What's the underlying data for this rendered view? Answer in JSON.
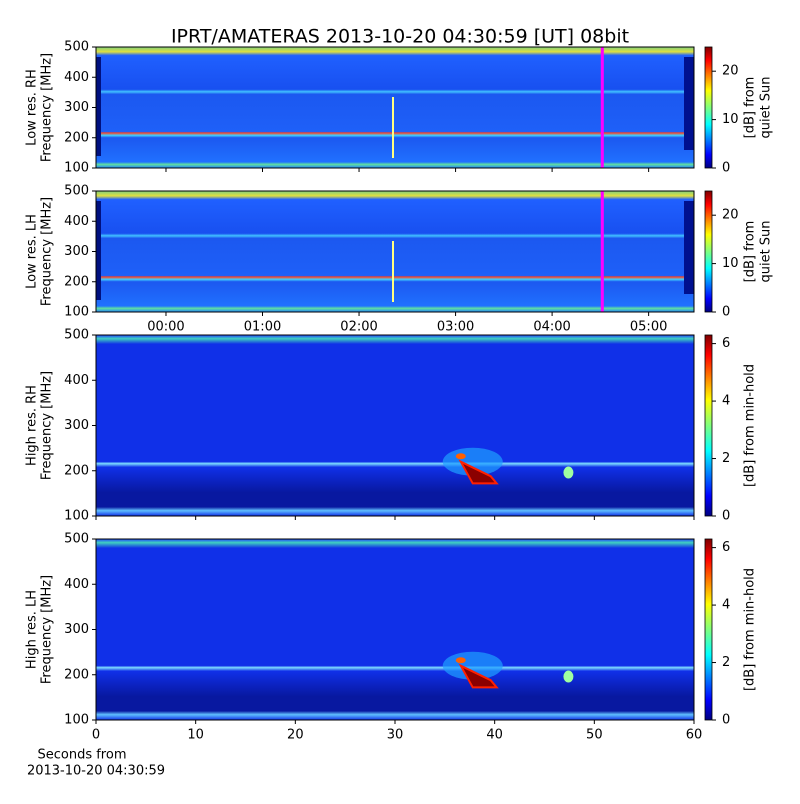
{
  "figure_title": "IPRT/AMATERAS 2013-10-20 04:30:59 [UT]   08bit",
  "chart_data": [
    {
      "type": "spectrogram",
      "ylabel": [
        "Low res. RH",
        "Frequency [MHz]"
      ],
      "ylim": [
        100,
        500
      ],
      "yticks": [
        100,
        200,
        300,
        400,
        500
      ],
      "xlim": [
        -0.725,
        5.47
      ],
      "xticks": [
        0,
        1,
        2,
        3,
        4,
        5
      ],
      "xtick_labels": false,
      "marker_x": 4.52,
      "marker_color": "#ff00ff",
      "colormap": "jet",
      "colorbar": {
        "label": [
          "[dB] from",
          "quiet Sun"
        ],
        "lim": [
          0,
          25
        ],
        "ticks": [
          0,
          10,
          20
        ]
      }
    },
    {
      "type": "spectrogram",
      "ylabel": [
        "Low res. LH",
        "Frequency [MHz]"
      ],
      "ylim": [
        100,
        500
      ],
      "yticks": [
        100,
        200,
        300,
        400,
        500
      ],
      "xlim": [
        -0.725,
        5.47
      ],
      "xticks": [
        {
          "value": 0,
          "label": "00:00"
        },
        {
          "value": 1,
          "label": "01:00"
        },
        {
          "value": 2,
          "label": "02:00"
        },
        {
          "value": 3,
          "label": "03:00"
        },
        {
          "value": 4,
          "label": "04:00"
        },
        {
          "value": 5,
          "label": "05:00"
        }
      ],
      "xtick_labels": true,
      "marker_x": 4.52,
      "marker_color": "#ff00ff",
      "colormap": "jet",
      "colorbar": {
        "label": [
          "[dB] from",
          "quiet Sun"
        ],
        "lim": [
          0,
          25
        ],
        "ticks": [
          0,
          10,
          20
        ]
      }
    },
    {
      "type": "spectrogram",
      "ylabel": [
        "High res. RH",
        "Frequency [MHz]"
      ],
      "ylim": [
        100,
        500
      ],
      "yticks": [
        100,
        200,
        300,
        400,
        500
      ],
      "xlim": [
        0,
        60
      ],
      "xticks": [
        0,
        10,
        20,
        30,
        40,
        50,
        60
      ],
      "xtick_labels": false,
      "colormap": "jet",
      "colorbar": {
        "label": [
          "[dB] from min-hold"
        ],
        "lim": [
          0,
          6.3
        ],
        "ticks": [
          0,
          2,
          4,
          6
        ]
      }
    },
    {
      "type": "spectrogram",
      "ylabel": [
        "High res. LH",
        "Frequency [MHz]"
      ],
      "ylim": [
        100,
        500
      ],
      "yticks": [
        100,
        200,
        300,
        400,
        500
      ],
      "xlim": [
        0,
        60
      ],
      "xticks": [
        0,
        10,
        20,
        30,
        40,
        50,
        60
      ],
      "xtick_labels": true,
      "colormap": "jet",
      "xlabel": [
        "Seconds from",
        "2013-10-20 04:30:59"
      ],
      "colorbar": {
        "label": [
          "[dB] from min-hold"
        ],
        "lim": [
          0,
          6.3
        ],
        "ticks": [
          0,
          2,
          4,
          6
        ]
      }
    }
  ]
}
